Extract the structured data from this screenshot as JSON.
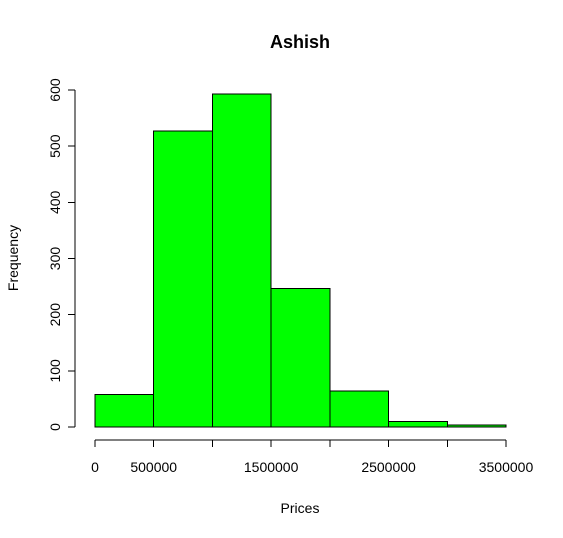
{
  "chart_data": {
    "type": "bar",
    "title": "Ashish",
    "xlabel": "Prices",
    "ylabel": "Frequency",
    "bins": [
      {
        "from": 0,
        "to": 500000,
        "value": 58
      },
      {
        "from": 500000,
        "to": 1000000,
        "value": 527
      },
      {
        "from": 1000000,
        "to": 1500000,
        "value": 593
      },
      {
        "from": 1500000,
        "to": 2000000,
        "value": 247
      },
      {
        "from": 2000000,
        "to": 2500000,
        "value": 64
      },
      {
        "from": 2500000,
        "to": 3000000,
        "value": 10
      },
      {
        "from": 3000000,
        "to": 3500000,
        "value": 4
      }
    ],
    "xlim": [
      0,
      3500000
    ],
    "ylim": [
      0,
      600
    ],
    "x_ticks": [
      0,
      500000,
      1000000,
      1500000,
      2000000,
      2500000,
      3000000,
      3500000
    ],
    "x_tick_labels": [
      "0",
      "500000",
      "",
      "1500000",
      "",
      "2500000",
      "",
      "3500000"
    ],
    "y_ticks": [
      0,
      100,
      200,
      300,
      400,
      500,
      600
    ],
    "y_tick_labels": [
      "0",
      "100",
      "200",
      "300",
      "400",
      "500",
      "600"
    ],
    "bar_color": "#00ff00",
    "grid": false,
    "legend": "none"
  }
}
